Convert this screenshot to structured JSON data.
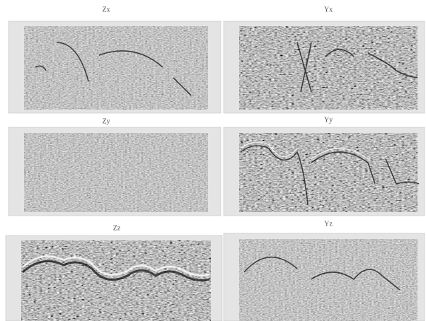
{
  "panels": [
    {
      "title": "Zx"
    },
    {
      "title": "Yx"
    },
    {
      "title": "Zy"
    },
    {
      "title": "Yy"
    },
    {
      "title": "Zz"
    },
    {
      "title": "Yz"
    }
  ]
}
